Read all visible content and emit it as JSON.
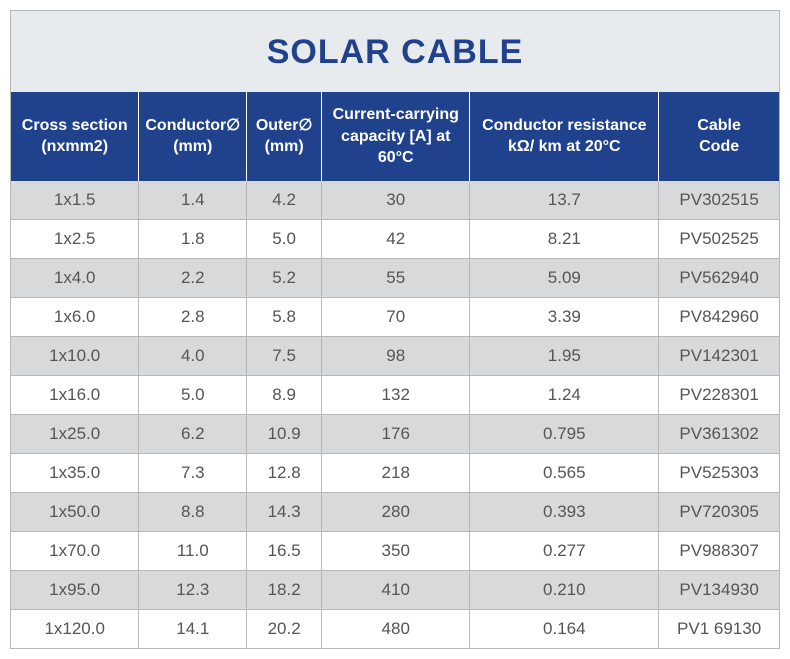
{
  "title": "SOLAR CABLE",
  "colors": {
    "header_bg": "#20418c",
    "header_text": "#ffffff",
    "title_bg": "#e8ebed",
    "title_text": "#20418c",
    "row_odd_bg": "#d8d9db",
    "row_even_bg": "#ffffff",
    "cell_text": "#555555",
    "border": "#b8b8b8"
  },
  "columns": [
    {
      "line1": "Cross section",
      "line2": "(nxmm2)"
    },
    {
      "line1": "Conductor∅",
      "line2": "(mm)"
    },
    {
      "line1": "Outer∅",
      "line2": "(mm)"
    },
    {
      "line1": "Current-carrying",
      "line2": "capacity [A] at 60°C"
    },
    {
      "line1": "Conductor resistance",
      "line2": "kΩ/ km at 20°C"
    },
    {
      "line1": "Cable",
      "line2": "Code"
    }
  ],
  "rows": [
    [
      "1x1.5",
      "1.4",
      "4.2",
      "30",
      "13.7",
      "PV302515"
    ],
    [
      "1x2.5",
      "1.8",
      "5.0",
      "42",
      "8.21",
      "PV502525"
    ],
    [
      "1x4.0",
      "2.2",
      "5.2",
      "55",
      "5.09",
      "PV562940"
    ],
    [
      "1x6.0",
      "2.8",
      "5.8",
      "70",
      "3.39",
      "PV842960"
    ],
    [
      "1x10.0",
      "4.0",
      "7.5",
      "98",
      "1.95",
      "PV142301"
    ],
    [
      "1x16.0",
      "5.0",
      "8.9",
      "132",
      "1.24",
      "PV228301"
    ],
    [
      "1x25.0",
      "6.2",
      "10.9",
      "176",
      "0.795",
      "PV361302"
    ],
    [
      "1x35.0",
      "7.3",
      "12.8",
      "218",
      "0.565",
      "PV525303"
    ],
    [
      "1x50.0",
      "8.8",
      "14.3",
      "280",
      "0.393",
      "PV720305"
    ],
    [
      "1x70.0",
      "11.0",
      "16.5",
      "350",
      "0.277",
      "PV988307"
    ],
    [
      "1x95.0",
      "12.3",
      "18.2",
      "410",
      "0.210",
      "PV134930"
    ],
    [
      "1x120.0",
      "14.1",
      "20.2",
      "480",
      "0.164",
      "PV1 69130"
    ]
  ]
}
